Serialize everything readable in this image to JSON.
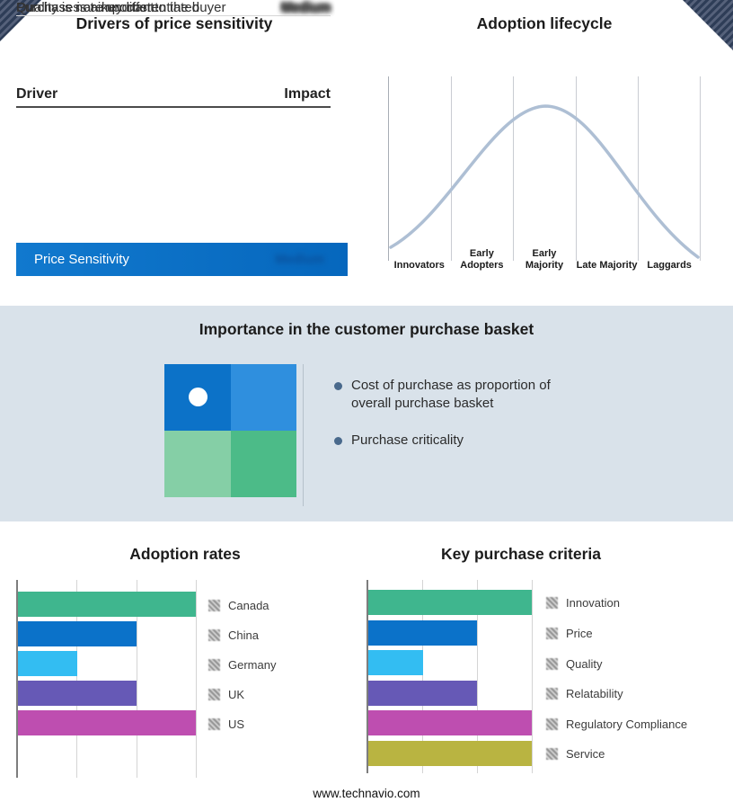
{
  "colors": {
    "banner_blue": "#0C72C8",
    "band_bg": "#D9E2EA",
    "curve": "#AEBFD4"
  },
  "drivers": {
    "title": "Drivers of price sensitivity",
    "columns": {
      "driver": "Driver",
      "impact": "Impact"
    },
    "rows": [
      {
        "driver": "Purchases are undifferentiated",
        "impact": "Medium"
      },
      {
        "driver": "Purchase is a key cost to the buyer",
        "impact": "Medium"
      },
      {
        "driver": "Quality is not important",
        "impact": "Medium"
      }
    ],
    "summary": {
      "label": "Price Sensitivity",
      "impact": "Medium"
    }
  },
  "basket": {
    "title": "Importance in the customer purchase basket",
    "bullets": [
      "Cost of purchase as proportion of overall purchase basket",
      "Purchase criticality"
    ],
    "matrix_colors": [
      "#0C72C8",
      "#2F8FDE",
      "#85CFA6",
      "#4CBB88"
    ]
  },
  "footer": "www.technavio.com",
  "chart_data": [
    {
      "type": "line",
      "title": "Adoption lifecycle",
      "categories": [
        "Innovators",
        "Early Adopters",
        "Early Majority",
        "Late Majority",
        "Laggards"
      ],
      "description": "Bell-shaped adoption curve peaking at Early Majority",
      "line_color": "#AEBFD4",
      "grid": true
    },
    {
      "type": "bar",
      "orientation": "horizontal",
      "title": "Adoption rates",
      "categories": [
        "Canada",
        "China",
        "Germany",
        "UK",
        "US"
      ],
      "values": [
        3,
        2,
        1,
        2,
        3
      ],
      "xlim": [
        0,
        3
      ],
      "colors": [
        "#3FB68E",
        "#0B72C9",
        "#33BDF2",
        "#6659B6",
        "#BE4EB0"
      ],
      "grid": true,
      "legend_position": "right"
    },
    {
      "type": "bar",
      "orientation": "horizontal",
      "title": "Key purchase criteria",
      "categories": [
        "Innovation",
        "Price",
        "Quality",
        "Relatability",
        "Regulatory Compliance",
        "Service"
      ],
      "values": [
        3,
        2,
        1,
        2,
        3,
        3
      ],
      "xlim": [
        0,
        3
      ],
      "colors": [
        "#3FB68E",
        "#0B72C9",
        "#33BDF2",
        "#6659B6",
        "#BE4EB0",
        "#B9B441"
      ],
      "grid": true,
      "legend_position": "right"
    }
  ]
}
